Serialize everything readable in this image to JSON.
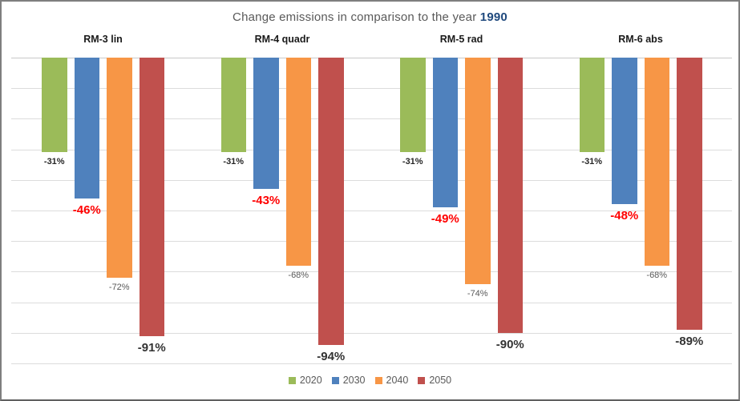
{
  "title": {
    "prefix": "Change emissions in comparison to the year ",
    "year": "1990",
    "prefix_color": "#595959",
    "year_color": "#1f497d"
  },
  "chart_data": {
    "type": "bar",
    "title": "Change emissions in comparison to the year 1990",
    "groups": [
      "RM-3 lin",
      "RM-4 quadr",
      "RM-5 rad",
      "RM-6 abs"
    ],
    "series": [
      {
        "name": "2020",
        "color": "#9BBB59",
        "values": [
          -31,
          -31,
          -31,
          -31
        ],
        "labels": [
          "-31%",
          "-31%",
          "-31%",
          "-31%"
        ],
        "label_style": "dark-small"
      },
      {
        "name": "2030",
        "color": "#4F81BD",
        "values": [
          -46,
          -43,
          -49,
          -48
        ],
        "labels": [
          "-46%",
          "-43%",
          "-49%",
          "-48%"
        ],
        "label_style": "red-large"
      },
      {
        "name": "2040",
        "color": "#F79646",
        "values": [
          -72,
          -68,
          -74,
          -68
        ],
        "labels": [
          "-72%",
          "-68%",
          "-74%",
          "-68%"
        ],
        "label_style": "gray-small"
      },
      {
        "name": "2050",
        "color": "#C0504D",
        "values": [
          -91,
          -94,
          -90,
          -89
        ],
        "labels": [
          "-91%",
          "-94%",
          "-90%",
          "-89%"
        ],
        "label_style": "dark-large"
      }
    ],
    "ylim": [
      -100,
      0
    ],
    "gridline_step": 10,
    "grid": true,
    "legend_position": "bottom",
    "value_unit": "%"
  },
  "legend": {
    "items": [
      {
        "label": "2020",
        "color": "#9BBB59"
      },
      {
        "label": "2030",
        "color": "#4F81BD"
      },
      {
        "label": "2040",
        "color": "#F79646"
      },
      {
        "label": "2050",
        "color": "#C0504D"
      }
    ]
  }
}
